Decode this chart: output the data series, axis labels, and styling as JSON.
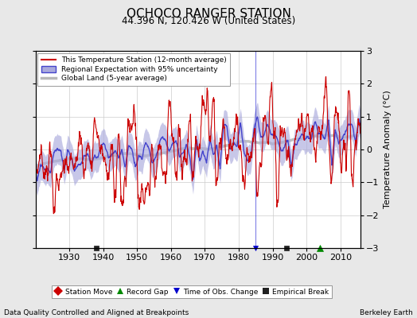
{
  "title": "OCHOCO RANGER STATION",
  "subtitle": "44.396 N, 120.426 W (United States)",
  "ylabel": "Temperature Anomaly (°C)",
  "footer_left": "Data Quality Controlled and Aligned at Breakpoints",
  "footer_right": "Berkeley Earth",
  "xlim": [
    1920,
    2016
  ],
  "ylim": [
    -3,
    3
  ],
  "yticks": [
    -3,
    -2,
    -1,
    0,
    1,
    2,
    3
  ],
  "xticks": [
    1930,
    1940,
    1950,
    1960,
    1970,
    1980,
    1990,
    2000,
    2010
  ],
  "bg_color": "#e8e8e8",
  "plot_bg_color": "#ffffff",
  "station_color": "#cc0000",
  "regional_color": "#4444cc",
  "regional_fill_color": "#aaaadd",
  "global_color": "#b8b8b8",
  "marker_events": {
    "empirical_breaks": [
      1938,
      1994
    ],
    "record_gaps": [
      2004
    ],
    "station_moves": [],
    "time_obs_changes": [
      1985
    ]
  },
  "legend_station": "This Temperature Station (12-month average)",
  "legend_regional": "Regional Expectation with 95% uncertainty",
  "legend_global": "Global Land (5-year average)",
  "legend_station_move": "Station Move",
  "legend_record_gap": "Record Gap",
  "legend_time_obs": "Time of Obs. Change",
  "legend_empirical": "Empirical Break",
  "station_color_marker": "#cc0000",
  "gap_color": "#008800",
  "obs_color": "#0000cc",
  "break_color": "#222222"
}
